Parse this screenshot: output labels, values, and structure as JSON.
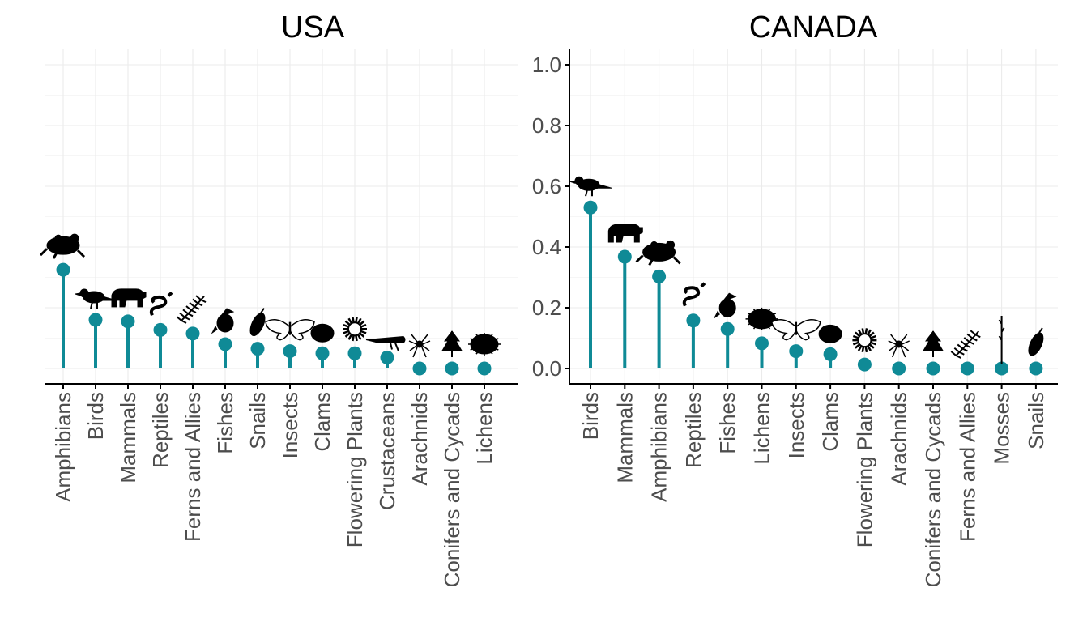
{
  "chart_data": [
    {
      "type": "lollipop",
      "title": "USA",
      "xlabel": "",
      "ylabel": "",
      "ylim": [
        0,
        1.0
      ],
      "grid": true,
      "y_axis_shown": false,
      "categories": [
        "Amphibians",
        "Birds",
        "Mammals",
        "Reptiles",
        "Ferns and Allies",
        "Fishes",
        "Snails",
        "Insects",
        "Clams",
        "Flowering Plants",
        "Crustaceans",
        "Arachnids",
        "Conifers and Cycads",
        "Lichens"
      ],
      "values": [
        0.325,
        0.16,
        0.155,
        0.127,
        0.115,
        0.08,
        0.065,
        0.057,
        0.05,
        0.05,
        0.036,
        0.0,
        0.0,
        0.0
      ],
      "icons": [
        "frog-icon",
        "bird-icon",
        "bear-icon",
        "snake-icon",
        "fern-icon",
        "fish-icon",
        "snail-icon",
        "butterfly-icon",
        "clam-icon",
        "flower-icon",
        "shrimp-icon",
        "spider-icon",
        "conifer-icon",
        "lichen-icon"
      ],
      "color": "#0F8A96"
    },
    {
      "type": "lollipop",
      "title": "CANADA",
      "xlabel": "",
      "ylabel": "",
      "ylim": [
        0,
        1.0
      ],
      "grid": true,
      "y_axis_shown": true,
      "yticks": [
        "0.0",
        "0.2",
        "0.4",
        "0.6",
        "0.8",
        "1.0"
      ],
      "categories": [
        "Birds",
        "Mammals",
        "Amphibians",
        "Reptiles",
        "Fishes",
        "Lichens",
        "Insects",
        "Clams",
        "Flowering Plants",
        "Arachnids",
        "Conifers and Cycads",
        "Ferns and Allies",
        "Mosses",
        "Snails"
      ],
      "values": [
        0.53,
        0.368,
        0.303,
        0.158,
        0.13,
        0.083,
        0.057,
        0.047,
        0.013,
        0.0,
        0.0,
        0.0,
        0.0,
        0.0
      ],
      "icons": [
        "bird-icon",
        "bear-icon",
        "frog-icon",
        "snake-icon",
        "fish-icon",
        "lichen-icon",
        "butterfly-icon",
        "clam-icon",
        "flower-icon",
        "spider-icon",
        "conifer-icon",
        "fern-icon",
        "moss-icon",
        "snail-icon"
      ],
      "color": "#0F8A96"
    }
  ]
}
